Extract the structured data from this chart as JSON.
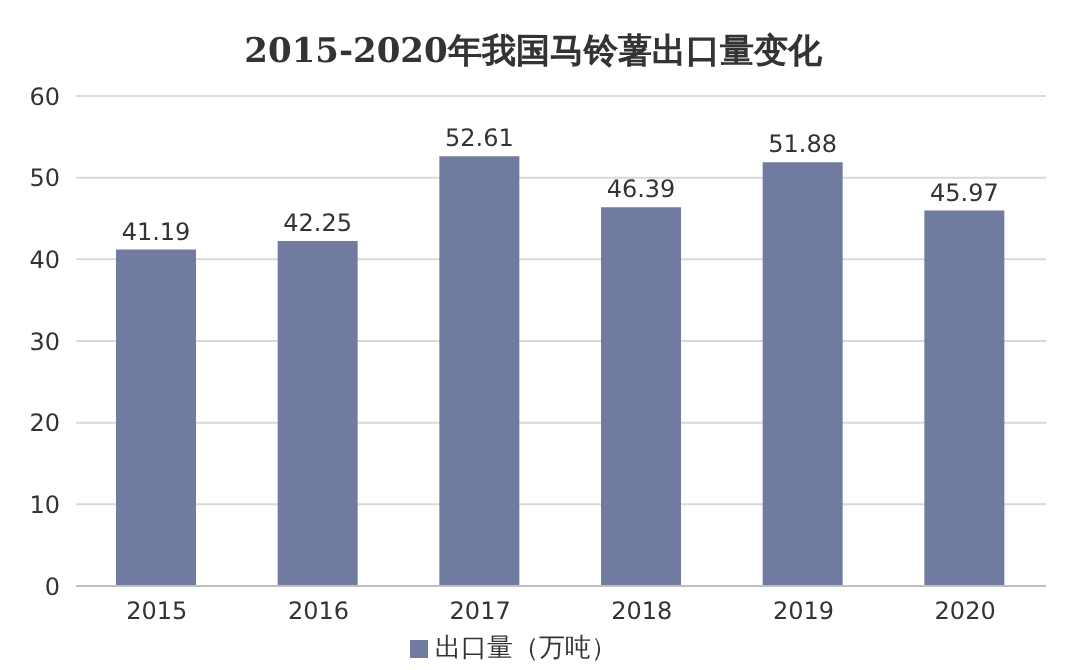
{
  "chart_data": {
    "type": "bar",
    "title": "2015-2020年我国马铃薯出口量变化",
    "categories": [
      "2015",
      "2016",
      "2017",
      "2018",
      "2019",
      "2020"
    ],
    "series": [
      {
        "name": "出口量（万吨）",
        "color": "#717ba0",
        "values": [
          41.19,
          42.25,
          52.61,
          46.39,
          51.88,
          45.97
        ]
      }
    ],
    "ylim": [
      0,
      60
    ],
    "yticks": [
      0,
      10,
      20,
      30,
      40,
      50,
      60
    ],
    "grid": "y",
    "legend": "bottom",
    "data_labels": true
  }
}
